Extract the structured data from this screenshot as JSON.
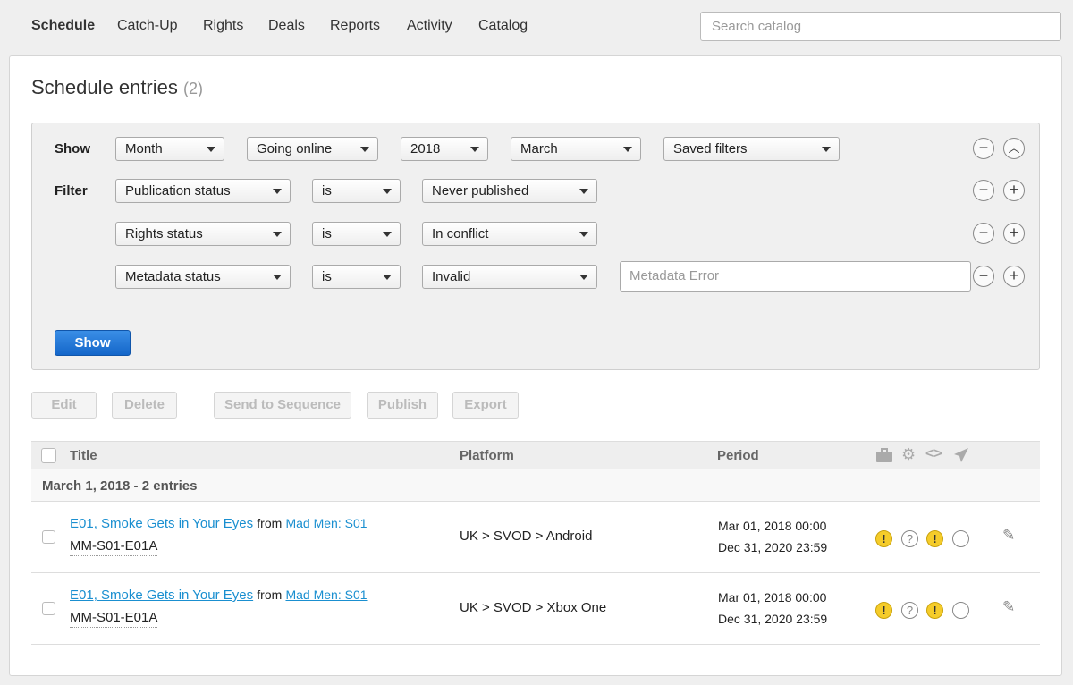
{
  "nav": {
    "items": [
      "Schedule",
      "Catch-Up",
      "Rights",
      "Deals",
      "Reports",
      "Activity",
      "Catalog"
    ],
    "active": "Schedule"
  },
  "search": {
    "placeholder": "Search catalog"
  },
  "page": {
    "title": "Schedule entries",
    "count": "(2)"
  },
  "filters": {
    "show_label": "Show",
    "filter_label": "Filter",
    "show_row": [
      "Month",
      "Going online",
      "2018",
      "March",
      "Saved filters"
    ],
    "rows": [
      {
        "field": "Publication status",
        "op": "is",
        "value": "Never published"
      },
      {
        "field": "Rights status",
        "op": "is",
        "value": "In conflict"
      },
      {
        "field": "Metadata status",
        "op": "is",
        "value": "Invalid",
        "text_placeholder": "Metadata Error"
      }
    ],
    "show_button": "Show"
  },
  "actions": [
    "Edit",
    "Delete",
    "Send to Sequence",
    "Publish",
    "Export"
  ],
  "table": {
    "columns": [
      "Title",
      "Platform",
      "Period"
    ],
    "status_icons": [
      "briefcase-icon",
      "gear-icon",
      "code-icon",
      "send-icon"
    ],
    "group": "March 1, 2018 - 2 entries",
    "rows": [
      {
        "title": "E01, Smoke Gets in Your Eyes",
        "from": "from",
        "series": "Mad Men: S01",
        "id": "MM-S01-E01A",
        "platform": "UK > SVOD > Android",
        "start": "Mar 01, 2018 00:00",
        "end": "Dec 31, 2020 23:59"
      },
      {
        "title": "E01, Smoke Gets in Your Eyes",
        "from": "from",
        "series": "Mad Men: S01",
        "id": "MM-S01-E01A",
        "platform": "UK > SVOD > Xbox One",
        "start": "Mar 01, 2018 00:00",
        "end": "Dec 31, 2020 23:59"
      }
    ]
  },
  "colors": {
    "accent": "#1a8fd0",
    "primary_button": "#1466c9",
    "warning": "#f5cc2a"
  }
}
